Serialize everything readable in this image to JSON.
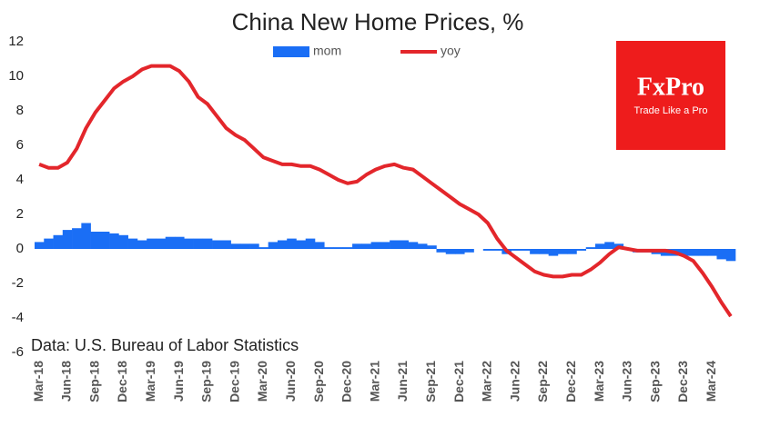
{
  "chart_data": {
    "type": "bar_line",
    "title": "China New Home Prices, %",
    "source": "Data: U.S. Bureau of Labor Statistics",
    "logo": {
      "brand": "FxPro",
      "tagline": "Trade Like a Pro"
    },
    "categories": [
      "Mar-18",
      null,
      null,
      "Jun-18",
      null,
      null,
      "Sep-18",
      null,
      null,
      "Dec-18",
      null,
      null,
      "Mar-19",
      null,
      null,
      "Jun-19",
      null,
      null,
      "Sep-19",
      null,
      null,
      "Dec-19",
      null,
      null,
      "Mar-20",
      null,
      null,
      "Jun-20",
      null,
      null,
      "Sep-20",
      null,
      null,
      "Dec-20",
      null,
      null,
      "Mar-21",
      null,
      null,
      "Jun-21",
      null,
      null,
      "Sep-21",
      null,
      null,
      "Dec-21",
      null,
      null,
      "Mar-22",
      null,
      null,
      "Jun-22",
      null,
      null,
      "Sep-22",
      null,
      null,
      "Dec-22",
      null,
      null,
      "Mar-23",
      null,
      null,
      "Jun-23",
      null,
      null,
      "Sep-23",
      null,
      null,
      "Dec-23",
      null,
      null,
      "Mar-24",
      null,
      null
    ],
    "series": [
      {
        "name": "mom",
        "kind": "bar",
        "color": "#1a6ef5",
        "values": [
          0.4,
          0.6,
          0.8,
          1.1,
          1.2,
          1.5,
          1.0,
          1.0,
          0.9,
          0.8,
          0.6,
          0.5,
          0.6,
          0.6,
          0.7,
          0.7,
          0.6,
          0.6,
          0.6,
          0.5,
          0.5,
          0.3,
          0.3,
          0.3,
          0.1,
          0.4,
          0.5,
          0.6,
          0.5,
          0.6,
          0.4,
          0.1,
          0.1,
          0.1,
          0.3,
          0.3,
          0.4,
          0.4,
          0.5,
          0.5,
          0.4,
          0.3,
          0.2,
          -0.2,
          -0.3,
          -0.3,
          -0.2,
          0,
          -0.1,
          -0.1,
          -0.3,
          -0.1,
          -0.1,
          -0.3,
          -0.3,
          -0.4,
          -0.3,
          -0.3,
          -0.1,
          0.1,
          0.3,
          0.4,
          0.3,
          0,
          -0.2,
          -0.2,
          -0.3,
          -0.4,
          -0.4,
          -0.4,
          -0.4,
          -0.4,
          -0.4,
          -0.6,
          -0.7
        ]
      },
      {
        "name": "yoy",
        "kind": "line",
        "color": "#e3262b",
        "values": [
          4.9,
          4.7,
          4.7,
          5.0,
          5.8,
          7.0,
          7.9,
          8.6,
          9.3,
          9.7,
          10.0,
          10.4,
          10.6,
          10.6,
          10.6,
          10.3,
          9.7,
          8.8,
          8.4,
          7.7,
          7.0,
          6.6,
          6.3,
          5.8,
          5.3,
          5.1,
          4.9,
          4.9,
          4.8,
          4.8,
          4.6,
          4.3,
          4.0,
          3.8,
          3.9,
          4.3,
          4.6,
          4.8,
          4.9,
          4.7,
          4.6,
          4.2,
          3.8,
          3.4,
          3.0,
          2.6,
          2.3,
          2.0,
          1.5,
          0.6,
          -0.1,
          -0.5,
          -0.9,
          -1.3,
          -1.5,
          -1.6,
          -1.6,
          -1.5,
          -1.5,
          -1.2,
          -0.8,
          -0.3,
          0.1,
          0.0,
          -0.1,
          -0.1,
          -0.1,
          -0.1,
          -0.2,
          -0.4,
          -0.7,
          -1.4,
          -2.2,
          -3.1,
          -3.9
        ]
      }
    ],
    "ylim": [
      -6,
      12
    ],
    "yticks": [
      -6,
      -4,
      -2,
      0,
      2,
      4,
      6,
      8,
      10,
      12
    ],
    "grid": false
  }
}
